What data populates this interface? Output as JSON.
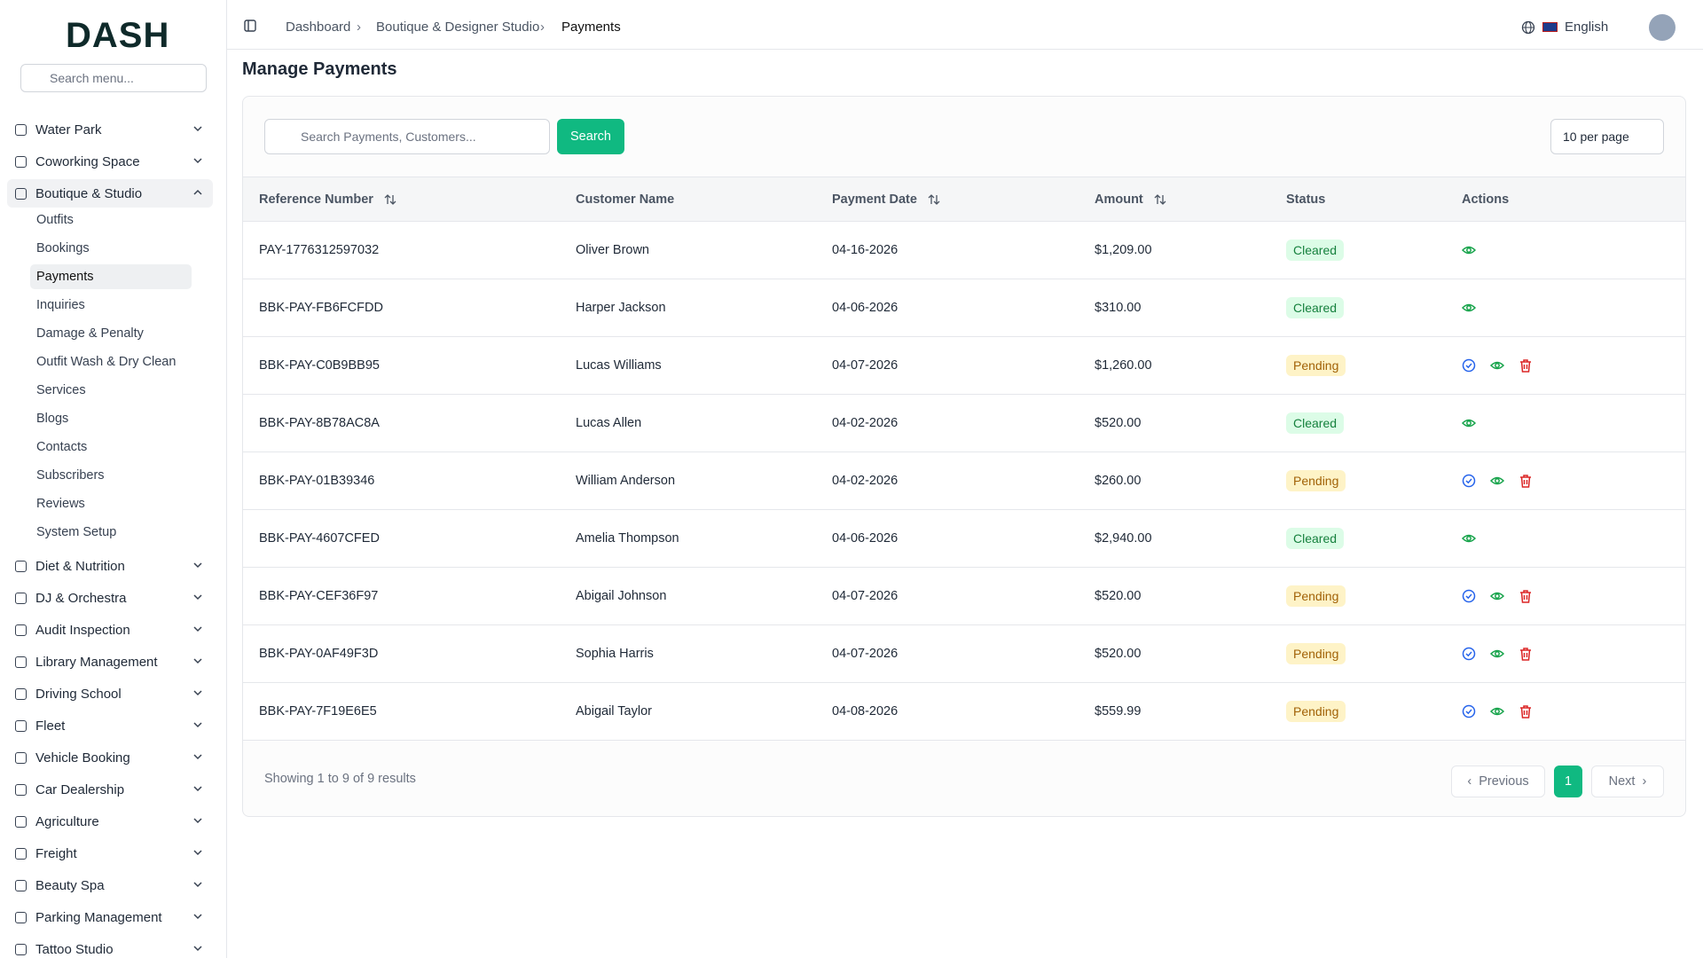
{
  "logo": "DASH",
  "sidebar": {
    "search_placeholder": "Search menu...",
    "items": [
      {
        "label": "Water Park"
      },
      {
        "label": "Coworking Space"
      },
      {
        "label": "Boutique & Studio",
        "children": [
          "Outfits",
          "Bookings",
          "Payments",
          "Inquiries",
          "Damage & Penalty",
          "Outfit Wash & Dry Clean",
          "Services",
          "Blogs",
          "Contacts",
          "Subscribers",
          "Reviews",
          "System Setup"
        ]
      },
      {
        "label": "Diet & Nutrition"
      },
      {
        "label": "DJ & Orchestra"
      },
      {
        "label": "Audit Inspection"
      },
      {
        "label": "Library Management"
      },
      {
        "label": "Driving School"
      },
      {
        "label": "Fleet"
      },
      {
        "label": "Vehicle Booking"
      },
      {
        "label": "Car Dealership"
      },
      {
        "label": "Agriculture"
      },
      {
        "label": "Freight"
      },
      {
        "label": "Beauty Spa"
      },
      {
        "label": "Parking Management"
      },
      {
        "label": "Tattoo Studio"
      }
    ]
  },
  "header": {
    "breadcrumbs": [
      "Dashboard",
      "Boutique & Designer Studio",
      "Payments"
    ],
    "language": "English"
  },
  "page": {
    "title": "Manage Payments",
    "search_placeholder": "Search Payments, Customers...",
    "search_button": "Search",
    "per_page": "10 per page"
  },
  "table": {
    "headers": [
      "Reference Number",
      "Customer Name",
      "Payment Date",
      "Amount",
      "Status",
      "Actions"
    ],
    "rows": [
      [
        "PAY-1776312597032",
        "Oliver Brown",
        "04-16-2026",
        "$1,209.00",
        "Cleared"
      ],
      [
        "BBK-PAY-FB6FCFDD",
        "Harper Jackson",
        "04-06-2026",
        "$310.00",
        "Cleared"
      ],
      [
        "BBK-PAY-C0B9BB95",
        "Lucas Williams",
        "04-07-2026",
        "$1,260.00",
        "Pending"
      ],
      [
        "BBK-PAY-8B78AC8A",
        "Lucas Allen",
        "04-02-2026",
        "$520.00",
        "Cleared"
      ],
      [
        "BBK-PAY-01B39346",
        "William Anderson",
        "04-02-2026",
        "$260.00",
        "Pending"
      ],
      [
        "BBK-PAY-4607CFED",
        "Amelia Thompson",
        "04-06-2026",
        "$2,940.00",
        "Cleared"
      ],
      [
        "BBK-PAY-CEF36F97",
        "Abigail Johnson",
        "04-07-2026",
        "$520.00",
        "Pending"
      ],
      [
        "BBK-PAY-0AF49F3D",
        "Sophia Harris",
        "04-07-2026",
        "$520.00",
        "Pending"
      ],
      [
        "BBK-PAY-7F19E6E5",
        "Abigail Taylor",
        "04-08-2026",
        "$559.99",
        "Pending"
      ]
    ]
  },
  "footer": {
    "summary": "Showing 1 to 9 of 9 results",
    "previous": "Previous",
    "page": "1",
    "next": "Next"
  }
}
